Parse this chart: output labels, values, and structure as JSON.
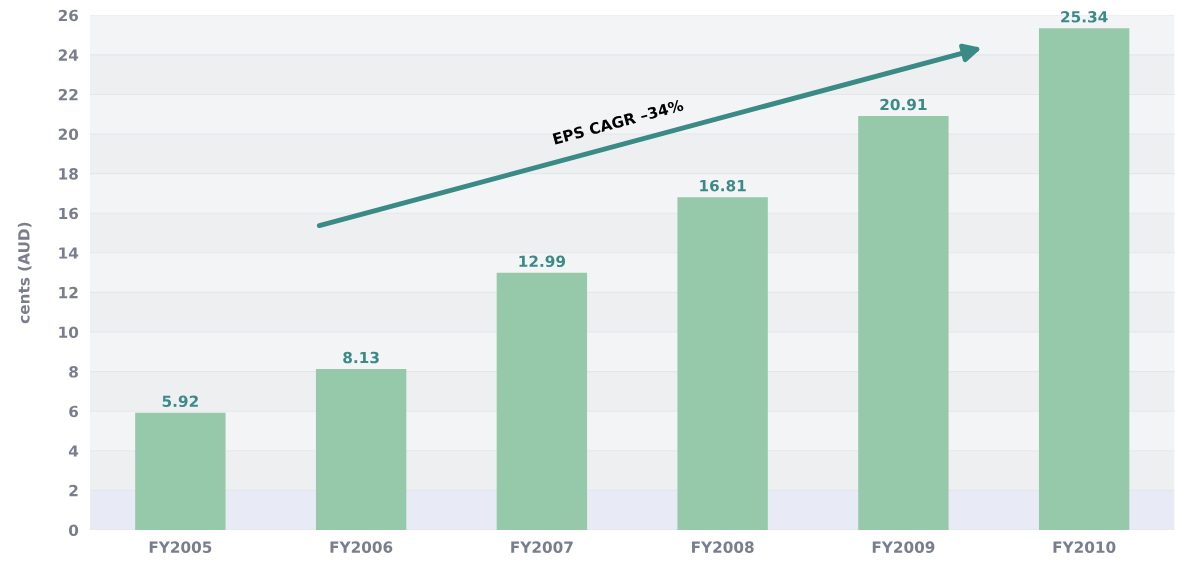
{
  "chart_data": {
    "type": "bar",
    "ylabel": "cents (AUD)",
    "categories": [
      "FY2005",
      "FY2006",
      "FY2007",
      "FY2008",
      "FY2009",
      "FY2010"
    ],
    "values": [
      5.92,
      8.13,
      12.99,
      16.81,
      20.91,
      25.34
    ],
    "color": "#96c8aa",
    "data_labels": true,
    "ylim": [
      0,
      26
    ],
    "yticks": [
      0,
      2,
      4,
      6,
      8,
      10,
      12,
      14,
      16,
      18,
      20,
      22,
      24,
      26
    ],
    "grid": "y",
    "bands": [
      {
        "axis": "y",
        "from": 0,
        "to": 2,
        "color": "#e8ebf5"
      }
    ],
    "annotations": [
      "EPS CAGR –34%"
    ]
  }
}
